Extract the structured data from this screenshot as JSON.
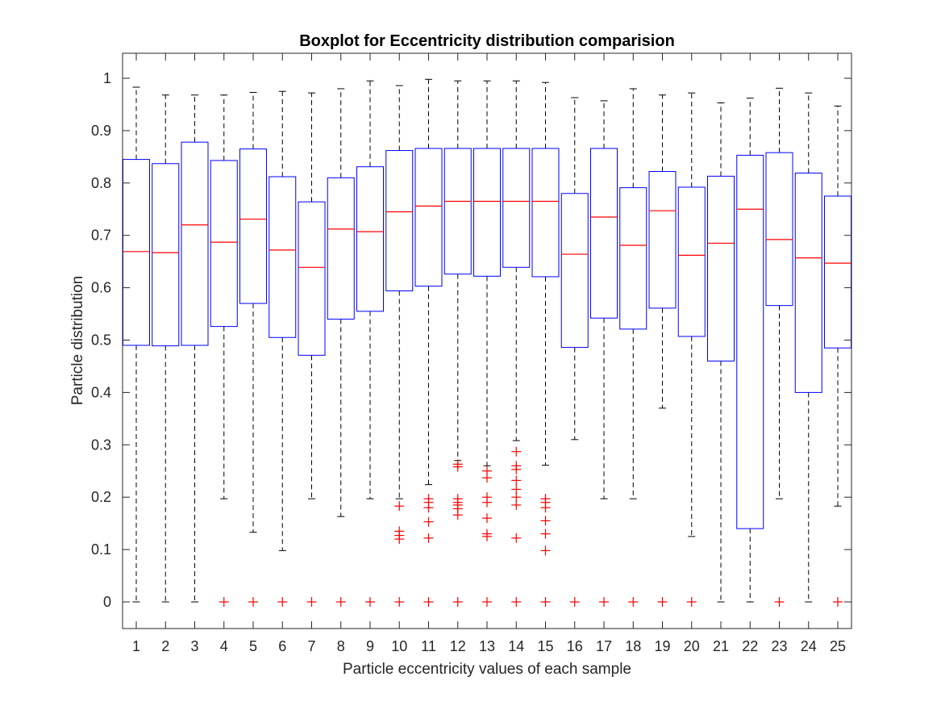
{
  "chart_data": {
    "type": "boxplot",
    "title": "Boxplot for Eccentricity distribution comparision",
    "xlabel": "Particle eccentricity values of each sample",
    "ylabel": "Particle distribution",
    "ylim": [
      -0.05,
      1.05
    ],
    "yticks": [
      0,
      0.1,
      0.2,
      0.3,
      0.4,
      0.5,
      0.6,
      0.7,
      0.8,
      0.9,
      1
    ],
    "ytick_labels": [
      "0",
      "0.1",
      "0.2",
      "0.3",
      "0.4",
      "0.5",
      "0.6",
      "0.7",
      "0.8",
      "0.9",
      "1"
    ],
    "categories": [
      "1",
      "2",
      "3",
      "4",
      "5",
      "6",
      "7",
      "8",
      "9",
      "10",
      "11",
      "12",
      "13",
      "14",
      "15",
      "16",
      "17",
      "18",
      "19",
      "20",
      "21",
      "22",
      "23",
      "24",
      "25"
    ],
    "grid": false,
    "colors": {
      "box": "#0000ff",
      "median": "#ff0000",
      "whisker": "#000000",
      "outlier": "#ff0000",
      "axis": "#262626"
    },
    "boxes": [
      {
        "whisker_low": 0.0,
        "q1": 0.49,
        "median": 0.669,
        "q3": 0.845,
        "whisker_high": 0.983,
        "outliers": []
      },
      {
        "whisker_low": 0.0,
        "q1": 0.489,
        "median": 0.667,
        "q3": 0.837,
        "whisker_high": 0.968,
        "outliers": []
      },
      {
        "whisker_low": 0.0,
        "q1": 0.49,
        "median": 0.72,
        "q3": 0.878,
        "whisker_high": 0.968,
        "outliers": []
      },
      {
        "whisker_low": 0.197,
        "q1": 0.526,
        "median": 0.687,
        "q3": 0.843,
        "whisker_high": 0.968,
        "outliers": [
          0
        ]
      },
      {
        "whisker_low": 0.133,
        "q1": 0.57,
        "median": 0.731,
        "q3": 0.865,
        "whisker_high": 0.973,
        "outliers": [
          0
        ]
      },
      {
        "whisker_low": 0.098,
        "q1": 0.505,
        "median": 0.672,
        "q3": 0.812,
        "whisker_high": 0.975,
        "outliers": [
          0
        ]
      },
      {
        "whisker_low": 0.197,
        "q1": 0.471,
        "median": 0.639,
        "q3": 0.764,
        "whisker_high": 0.972,
        "outliers": [
          0
        ]
      },
      {
        "whisker_low": 0.163,
        "q1": 0.54,
        "median": 0.712,
        "q3": 0.81,
        "whisker_high": 0.98,
        "outliers": [
          0
        ]
      },
      {
        "whisker_low": 0.197,
        "q1": 0.555,
        "median": 0.707,
        "q3": 0.831,
        "whisker_high": 0.995,
        "outliers": [
          0
        ]
      },
      {
        "whisker_low": 0.197,
        "q1": 0.594,
        "median": 0.745,
        "q3": 0.862,
        "whisker_high": 0.986,
        "outliers": [
          0,
          0.12,
          0.127,
          0.135,
          0.183
        ]
      },
      {
        "whisker_low": 0.224,
        "q1": 0.603,
        "median": 0.756,
        "q3": 0.866,
        "whisker_high": 0.998,
        "outliers": [
          0,
          0.122,
          0.153,
          0.18,
          0.19,
          0.197
        ]
      },
      {
        "whisker_low": 0.27,
        "q1": 0.626,
        "median": 0.765,
        "q3": 0.866,
        "whisker_high": 0.995,
        "outliers": [
          0,
          0.166,
          0.178,
          0.185,
          0.19,
          0.197,
          0.258,
          0.263
        ]
      },
      {
        "whisker_low": 0.26,
        "q1": 0.622,
        "median": 0.765,
        "q3": 0.866,
        "whisker_high": 0.995,
        "outliers": [
          0,
          0.125,
          0.13,
          0.16,
          0.19,
          0.2,
          0.237,
          0.25
        ]
      },
      {
        "whisker_low": 0.308,
        "q1": 0.639,
        "median": 0.765,
        "q3": 0.866,
        "whisker_high": 0.995,
        "outliers": [
          0,
          0.122,
          0.185,
          0.2,
          0.215,
          0.232,
          0.253,
          0.26,
          0.287
        ]
      },
      {
        "whisker_low": 0.261,
        "q1": 0.621,
        "median": 0.765,
        "q3": 0.866,
        "whisker_high": 0.992,
        "outliers": [
          0,
          0.098,
          0.13,
          0.155,
          0.18,
          0.19,
          0.197
        ]
      },
      {
        "whisker_low": 0.31,
        "q1": 0.486,
        "median": 0.664,
        "q3": 0.78,
        "whisker_high": 0.963,
        "outliers": [
          0
        ]
      },
      {
        "whisker_low": 0.197,
        "q1": 0.542,
        "median": 0.735,
        "q3": 0.866,
        "whisker_high": 0.957,
        "outliers": [
          0
        ]
      },
      {
        "whisker_low": 0.197,
        "q1": 0.521,
        "median": 0.681,
        "q3": 0.791,
        "whisker_high": 0.98,
        "outliers": [
          0
        ]
      },
      {
        "whisker_low": 0.37,
        "q1": 0.561,
        "median": 0.747,
        "q3": 0.822,
        "whisker_high": 0.968,
        "outliers": [
          0
        ]
      },
      {
        "whisker_low": 0.125,
        "q1": 0.507,
        "median": 0.662,
        "q3": 0.792,
        "whisker_high": 0.972,
        "outliers": [
          0
        ]
      },
      {
        "whisker_low": 0.0,
        "q1": 0.46,
        "median": 0.685,
        "q3": 0.813,
        "whisker_high": 0.953,
        "outliers": []
      },
      {
        "whisker_low": 0.0,
        "q1": 0.14,
        "median": 0.75,
        "q3": 0.853,
        "whisker_high": 0.962,
        "outliers": []
      },
      {
        "whisker_low": 0.197,
        "q1": 0.566,
        "median": 0.692,
        "q3": 0.858,
        "whisker_high": 0.981,
        "outliers": [
          0
        ]
      },
      {
        "whisker_low": 0.0,
        "q1": 0.4,
        "median": 0.657,
        "q3": 0.819,
        "whisker_high": 0.972,
        "outliers": []
      },
      {
        "whisker_low": 0.183,
        "q1": 0.485,
        "median": 0.647,
        "q3": 0.775,
        "whisker_high": 0.947,
        "outliers": [
          0
        ]
      }
    ]
  }
}
